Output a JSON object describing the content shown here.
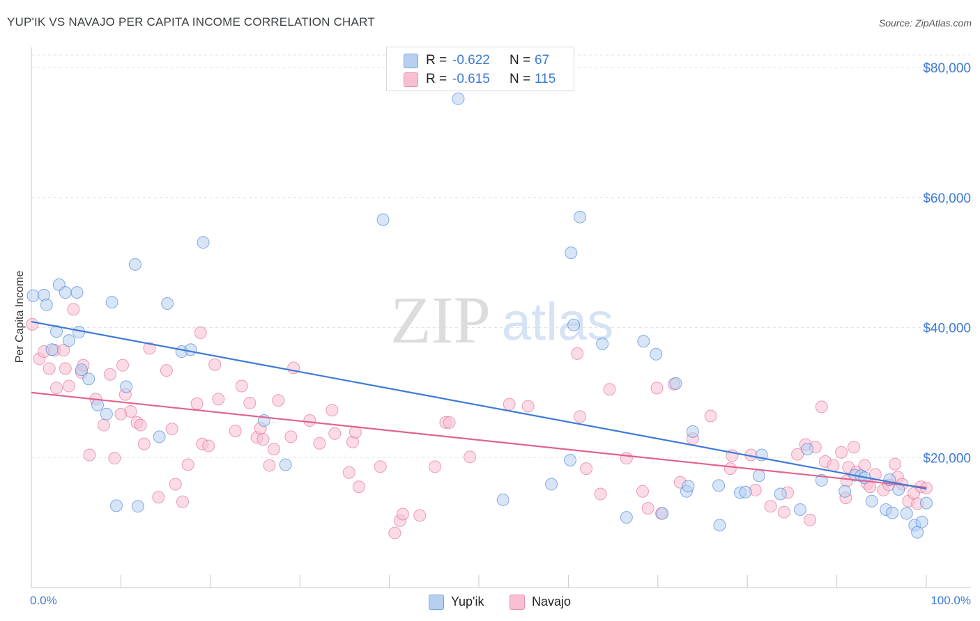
{
  "title": "YUP'IK VS NAVAJO PER CAPITA INCOME CORRELATION CHART",
  "source": "Source: ZipAtlas.com",
  "watermark": {
    "zip": "ZIP",
    "atlas": "atlas"
  },
  "legend_top": {
    "rows": [
      {
        "r_label": "R =",
        "r_value": "-0.622",
        "n_label": "N =",
        "n_value": "67"
      },
      {
        "r_label": "R =",
        "r_value": "-0.615",
        "n_label": "N =",
        "n_value": "115"
      }
    ]
  },
  "chart_data": {
    "type": "scatter",
    "title": "YUP'IK VS NAVAJO PER CAPITA INCOME CORRELATION CHART",
    "xlabel": "",
    "ylabel": "Per Capita Income",
    "xlim": [
      0,
      100
    ],
    "ylim": [
      0,
      82000
    ],
    "x_tick_labels": [
      "0.0%",
      "100.0%"
    ],
    "y_ticks": [
      20000,
      40000,
      60000,
      80000
    ],
    "y_tick_labels": [
      "$20,000",
      "$40,000",
      "$60,000",
      "$80,000"
    ],
    "grid": "horizontal dashed",
    "legend_position": "top-center and bottom",
    "series": [
      {
        "name": "Yup'ik",
        "color": "#3d7ad6",
        "fill": "#b7d0f0",
        "R": -0.622,
        "N": 67,
        "trend": {
          "x": [
            0,
            100
          ],
          "y": [
            40900,
            15200
          ]
        },
        "points": [
          [
            0.2,
            44900
          ],
          [
            1.4,
            45000
          ],
          [
            1.7,
            43500
          ],
          [
            2.3,
            36600
          ],
          [
            2.8,
            39400
          ],
          [
            3.1,
            46600
          ],
          [
            3.8,
            45400
          ],
          [
            4.2,
            38000
          ],
          [
            5.1,
            45400
          ],
          [
            5.3,
            39300
          ],
          [
            5.6,
            33500
          ],
          [
            6.4,
            32100
          ],
          [
            7.4,
            28100
          ],
          [
            8.4,
            26700
          ],
          [
            9.0,
            43900
          ],
          [
            9.5,
            12600
          ],
          [
            10.6,
            30900
          ],
          [
            11.6,
            49700
          ],
          [
            11.9,
            12500
          ],
          [
            14.3,
            23200
          ],
          [
            15.2,
            43700
          ],
          [
            16.8,
            36300
          ],
          [
            17.8,
            36600
          ],
          [
            19.2,
            53100
          ],
          [
            26.0,
            25700
          ],
          [
            28.4,
            18900
          ],
          [
            39.3,
            56600
          ],
          [
            47.7,
            75200
          ],
          [
            52.7,
            13500
          ],
          [
            58.1,
            15900
          ],
          [
            60.2,
            19600
          ],
          [
            60.3,
            51500
          ],
          [
            60.6,
            40400
          ],
          [
            61.3,
            57000
          ],
          [
            63.8,
            37500
          ],
          [
            66.5,
            10800
          ],
          [
            68.4,
            37900
          ],
          [
            69.8,
            35900
          ],
          [
            70.5,
            11400
          ],
          [
            72.0,
            31400
          ],
          [
            73.2,
            14800
          ],
          [
            73.4,
            15600
          ],
          [
            73.9,
            24000
          ],
          [
            76.8,
            15700
          ],
          [
            76.9,
            9600
          ],
          [
            79.2,
            14600
          ],
          [
            79.8,
            14700
          ],
          [
            81.3,
            17200
          ],
          [
            81.6,
            20400
          ],
          [
            83.7,
            14400
          ],
          [
            85.9,
            12000
          ],
          [
            86.7,
            21300
          ],
          [
            88.3,
            16500
          ],
          [
            90.9,
            14800
          ],
          [
            92.0,
            17300
          ],
          [
            92.7,
            17200
          ],
          [
            93.1,
            16900
          ],
          [
            93.9,
            13300
          ],
          [
            95.5,
            12000
          ],
          [
            95.9,
            16600
          ],
          [
            96.2,
            11500
          ],
          [
            96.9,
            15100
          ],
          [
            97.8,
            11400
          ],
          [
            98.7,
            9600
          ],
          [
            99.0,
            8500
          ],
          [
            99.5,
            10100
          ],
          [
            100.0,
            13000
          ]
        ]
      },
      {
        "name": "Navajo",
        "color": "#e0628e",
        "fill": "#f7bfd1",
        "R": -0.615,
        "N": 115,
        "trend": {
          "x": [
            0,
            100
          ],
          "y": [
            30000,
            15400
          ]
        },
        "points": [
          [
            0.1,
            40500
          ],
          [
            0.9,
            35200
          ],
          [
            1.4,
            36300
          ],
          [
            2.0,
            33700
          ],
          [
            2.6,
            36500
          ],
          [
            2.8,
            30700
          ],
          [
            3.6,
            36500
          ],
          [
            3.8,
            33700
          ],
          [
            4.2,
            31000
          ],
          [
            4.7,
            42800
          ],
          [
            5.6,
            33100
          ],
          [
            5.8,
            34200
          ],
          [
            6.5,
            20400
          ],
          [
            7.2,
            29000
          ],
          [
            8.1,
            25000
          ],
          [
            8.8,
            32800
          ],
          [
            9.3,
            19900
          ],
          [
            10.0,
            26700
          ],
          [
            10.2,
            34200
          ],
          [
            10.5,
            29700
          ],
          [
            11.1,
            27100
          ],
          [
            11.8,
            25400
          ],
          [
            12.2,
            25000
          ],
          [
            12.6,
            22100
          ],
          [
            13.2,
            36800
          ],
          [
            14.2,
            13900
          ],
          [
            15.1,
            33400
          ],
          [
            15.7,
            24400
          ],
          [
            16.1,
            15900
          ],
          [
            16.9,
            13200
          ],
          [
            17.5,
            18900
          ],
          [
            18.5,
            28300
          ],
          [
            18.9,
            39200
          ],
          [
            19.1,
            22100
          ],
          [
            19.8,
            21800
          ],
          [
            20.5,
            34300
          ],
          [
            20.9,
            29000
          ],
          [
            22.8,
            24100
          ],
          [
            23.5,
            31000
          ],
          [
            24.4,
            28400
          ],
          [
            25.2,
            23100
          ],
          [
            25.6,
            24500
          ],
          [
            25.9,
            22800
          ],
          [
            26.6,
            18800
          ],
          [
            27.1,
            21300
          ],
          [
            27.6,
            28800
          ],
          [
            29.0,
            23200
          ],
          [
            29.3,
            33800
          ],
          [
            31.1,
            25700
          ],
          [
            32.2,
            22200
          ],
          [
            33.6,
            27300
          ],
          [
            33.9,
            23700
          ],
          [
            35.5,
            17700
          ],
          [
            35.9,
            22400
          ],
          [
            36.2,
            23900
          ],
          [
            36.6,
            15500
          ],
          [
            39.0,
            18600
          ],
          [
            40.6,
            8400
          ],
          [
            41.2,
            10300
          ],
          [
            41.5,
            11300
          ],
          [
            43.4,
            11100
          ],
          [
            45.1,
            18600
          ],
          [
            46.3,
            25400
          ],
          [
            46.7,
            25400
          ],
          [
            49.0,
            20100
          ],
          [
            53.4,
            28200
          ],
          [
            55.5,
            27900
          ],
          [
            61.0,
            36000
          ],
          [
            61.3,
            26300
          ],
          [
            62.0,
            18300
          ],
          [
            63.6,
            14400
          ],
          [
            64.6,
            30500
          ],
          [
            66.5,
            19900
          ],
          [
            68.3,
            14800
          ],
          [
            68.9,
            12200
          ],
          [
            69.9,
            30700
          ],
          [
            70.4,
            11400
          ],
          [
            71.8,
            31300
          ],
          [
            72.5,
            16200
          ],
          [
            73.9,
            22900
          ],
          [
            75.9,
            26400
          ],
          [
            78.1,
            18300
          ],
          [
            78.3,
            20300
          ],
          [
            80.4,
            20400
          ],
          [
            80.9,
            15000
          ],
          [
            82.6,
            12500
          ],
          [
            84.1,
            11600
          ],
          [
            84.5,
            14600
          ],
          [
            85.6,
            20500
          ],
          [
            86.5,
            22000
          ],
          [
            87.0,
            10400
          ],
          [
            87.6,
            21600
          ],
          [
            88.3,
            27800
          ],
          [
            88.7,
            19400
          ],
          [
            89.6,
            18800
          ],
          [
            90.5,
            20800
          ],
          [
            91.0,
            13800
          ],
          [
            91.1,
            16400
          ],
          [
            91.3,
            18500
          ],
          [
            91.9,
            21600
          ],
          [
            92.2,
            17800
          ],
          [
            93.1,
            18800
          ],
          [
            93.4,
            16000
          ],
          [
            93.7,
            15500
          ],
          [
            94.3,
            17400
          ],
          [
            95.2,
            15000
          ],
          [
            95.8,
            15800
          ],
          [
            96.5,
            19000
          ],
          [
            96.8,
            17000
          ],
          [
            97.3,
            15900
          ],
          [
            98.0,
            13300
          ],
          [
            98.6,
            14500
          ],
          [
            99.0,
            12900
          ],
          [
            99.4,
            15500
          ],
          [
            100.0,
            15300
          ]
        ]
      }
    ]
  }
}
